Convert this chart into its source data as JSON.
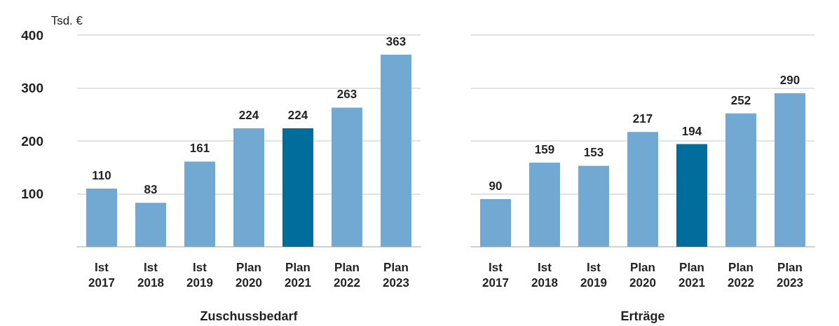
{
  "chart_data": [
    {
      "type": "bar",
      "ylabel": "Tsd. €",
      "xlabel": "Zuschussbedarf",
      "categories": [
        "Ist 2017",
        "Ist 2018",
        "Ist 2019",
        "Plan 2020",
        "Plan 2021",
        "Plan 2022",
        "Plan 2023"
      ],
      "values": [
        110,
        83,
        161,
        224,
        224,
        263,
        363
      ],
      "colors": [
        "#72a9d3",
        "#72a9d3",
        "#72a9d3",
        "#72a9d3",
        "#006d9c",
        "#72a9d3",
        "#72a9d3"
      ],
      "ylim": [
        0,
        400
      ],
      "yticks": [
        {
          "value": 0,
          "label": null
        },
        100,
        200,
        300,
        400
      ],
      "grid": "y",
      "data_labels": true
    },
    {
      "type": "bar",
      "xlabel": "Erträge",
      "categories": [
        "Ist 2017",
        "Ist 2018",
        "Ist 2019",
        "Plan 2020",
        "Plan 2021",
        "Plan 2022",
        "Plan 2023"
      ],
      "values": [
        90,
        159,
        153,
        217,
        194,
        252,
        290
      ],
      "colors": [
        "#72a9d3",
        "#72a9d3",
        "#72a9d3",
        "#72a9d3",
        "#006d9c",
        "#72a9d3",
        "#72a9d3"
      ],
      "ylim": [
        0,
        400
      ],
      "yticks": [
        {
          "value": 0,
          "label": null
        },
        100,
        200,
        300,
        400
      ],
      "grid": "y",
      "data_labels": true,
      "tick_labels": "x"
    }
  ]
}
